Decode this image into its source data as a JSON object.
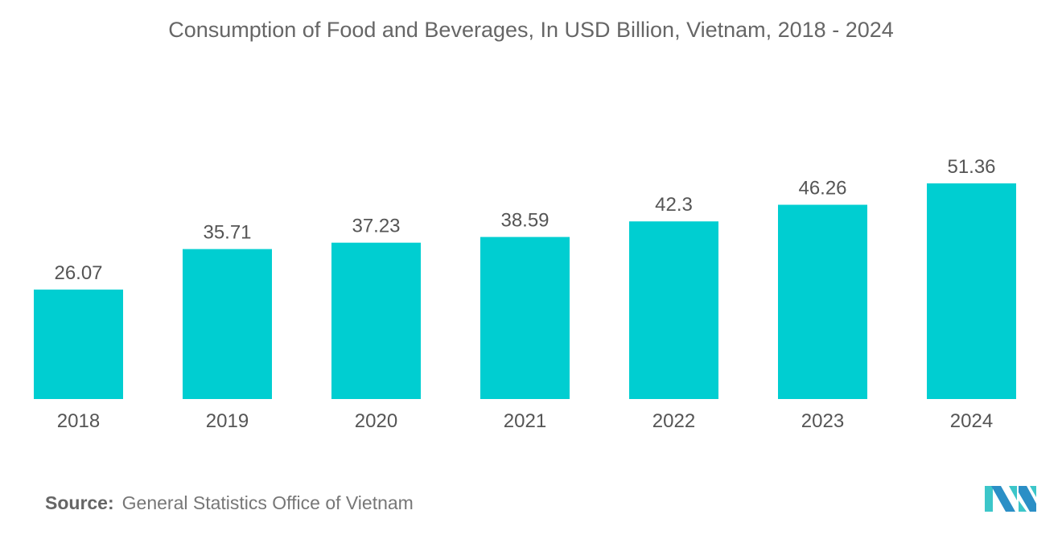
{
  "chart_data": {
    "type": "bar",
    "title": "Consumption of Food and Beverages, In USD Billion, Vietnam, 2018 - 2024",
    "categories": [
      "2018",
      "2019",
      "2020",
      "2021",
      "2022",
      "2023",
      "2024"
    ],
    "values": [
      26.07,
      35.71,
      37.23,
      38.59,
      42.3,
      46.26,
      51.36
    ],
    "value_labels": [
      "26.07",
      "35.71",
      "37.23",
      "38.59",
      "42.3",
      "46.26",
      "51.36"
    ],
    "xlabel": "",
    "ylabel": "",
    "ylim": [
      0,
      60
    ],
    "grid": false,
    "bar_color": "#00CED1"
  },
  "source": {
    "label": "Source:",
    "text": "General Statistics Office of Vietnam"
  },
  "logo": {
    "colors": [
      "#2B8FC6",
      "#3CC6C9"
    ]
  }
}
